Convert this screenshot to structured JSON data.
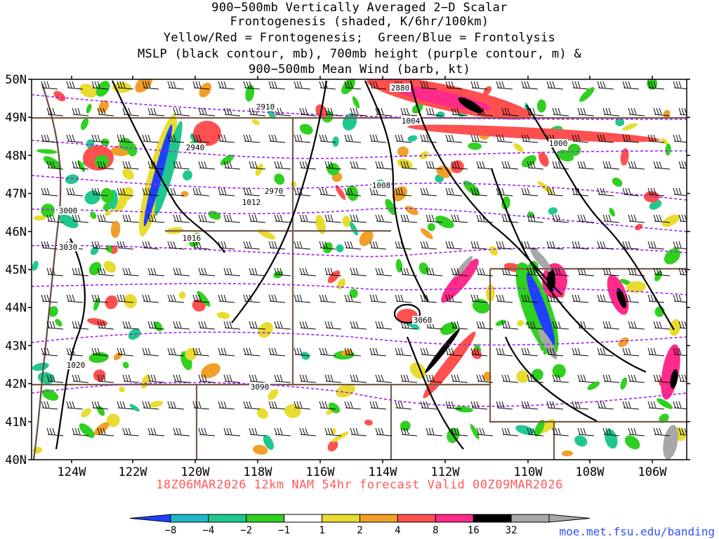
{
  "title": {
    "line1": "900−500mb Vertically Averaged 2−D Scalar",
    "line2": "Frontogenesis (shaded, K/6hr/100km)",
    "line3": "Yellow/Red = Frontogenesis;  Green/Blue = Frontolysis",
    "line4": "MSLP (black contour, mb), 700mb height (purple contour, m) &",
    "line5": "900−500mb Mean Wind (barb, kt)"
  },
  "map": {
    "lat_labels": [
      "50N",
      "49N",
      "48N",
      "47N",
      "46N",
      "45N",
      "44N",
      "43N",
      "42N",
      "41N",
      "40N"
    ],
    "lon_labels": [
      "124W",
      "122W",
      "120W",
      "118W",
      "116W",
      "114W",
      "112W",
      "110W",
      "108W",
      "106W"
    ],
    "height_contours": [
      {
        "label": "2880"
      },
      {
        "label": "2910"
      },
      {
        "label": "2940"
      },
      {
        "label": "2970"
      },
      {
        "label": "3000"
      },
      {
        "label": "3030"
      },
      {
        "label": "3060"
      },
      {
        "label": "3090"
      }
    ],
    "pressure_contours": [
      {
        "label": "1000"
      },
      {
        "label": "1004"
      },
      {
        "label": "1008"
      },
      {
        "label": "1012"
      },
      {
        "label": "1016"
      },
      {
        "label": "1020"
      }
    ],
    "colors": {
      "height_contour": "#a020f0",
      "mslp_contour": "#000000",
      "state_border": "#7a5c48",
      "coast": "#6b4a3a"
    }
  },
  "valid_text": "18Z06MAR2026 12km NAM 54hr forecast Valid 00Z09MAR2026",
  "colorbar": {
    "labels": [
      "−8",
      "−4",
      "−2",
      "−1",
      "1",
      "2",
      "4",
      "8",
      "16",
      "32"
    ],
    "colors": [
      "#2040ff",
      "#20b8c8",
      "#20c890",
      "#30d020",
      "#ffffff",
      "#e8dc30",
      "#f0a028",
      "#ff5050",
      "#ff2a8a",
      "#000000",
      "#a8a8a8"
    ]
  },
  "credit": "moe.met.fsu.edu/banding"
}
